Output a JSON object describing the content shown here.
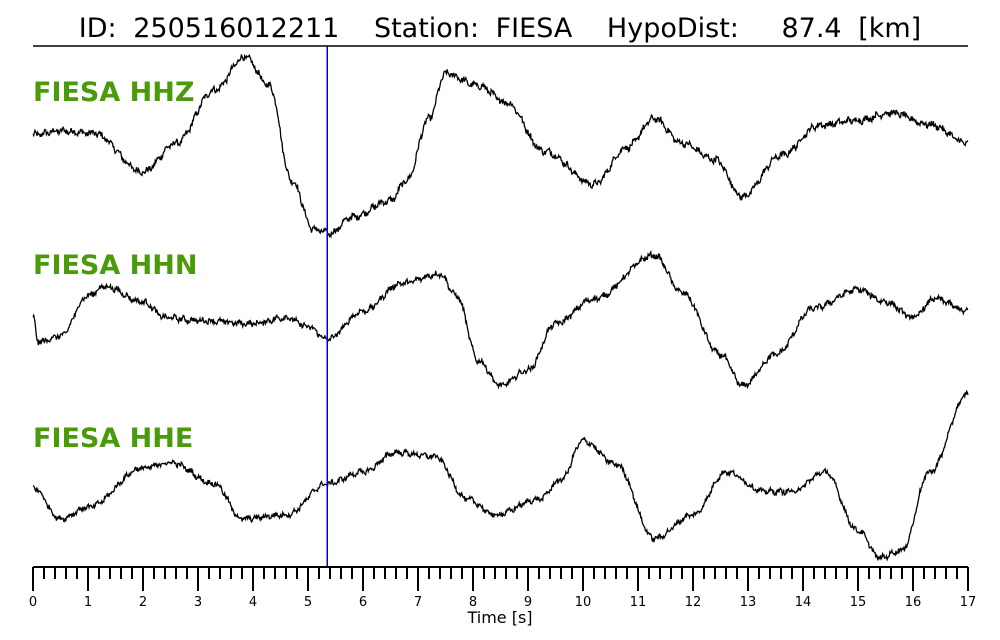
{
  "title": {
    "id_label": "ID:",
    "id": "250516012211",
    "station_label": "Station:",
    "station": "FIESA",
    "dist_label": "HypoDist:",
    "dist_value": "87.4",
    "dist_unit": "[km]"
  },
  "colors": {
    "label": "#4a9a0a",
    "trace": "#000000",
    "pick": "#0000cc"
  },
  "chart_data": {
    "type": "line",
    "xlabel": "Time [s]",
    "xlim": [
      0,
      17
    ],
    "x_major_ticks": [
      0,
      1,
      2,
      3,
      4,
      5,
      6,
      7,
      8,
      9,
      10,
      11,
      12,
      13,
      14,
      15,
      16,
      17
    ],
    "x_minor_step": 0.2,
    "pick_time": 5.35,
    "series": [
      {
        "name": "FIESA HHZ",
        "noise": 0.035,
        "points": [
          [
            0,
            0
          ],
          [
            0.5,
            0.05
          ],
          [
            1.1,
            0.02
          ],
          [
            2.0,
            -0.45
          ],
          [
            2.6,
            -0.1
          ],
          [
            3.3,
            0.55
          ],
          [
            3.85,
            0.95
          ],
          [
            4.3,
            0.6
          ],
          [
            4.7,
            -0.55
          ],
          [
            5.1,
            -1.15
          ],
          [
            5.4,
            -1.2
          ],
          [
            5.8,
            -1.0
          ],
          [
            6.5,
            -0.8
          ],
          [
            6.8,
            -0.55
          ],
          [
            7.2,
            0.2
          ],
          [
            7.5,
            0.75
          ],
          [
            8.1,
            0.6
          ],
          [
            8.6,
            0.4
          ],
          [
            9.3,
            -0.2
          ],
          [
            10.2,
            -0.6
          ],
          [
            10.8,
            -0.15
          ],
          [
            11.3,
            0.2
          ],
          [
            11.8,
            -0.1
          ],
          [
            12.4,
            -0.3
          ],
          [
            12.9,
            -0.75
          ],
          [
            13.6,
            -0.25
          ],
          [
            14.3,
            0.12
          ],
          [
            15.0,
            0.18
          ],
          [
            15.6,
            0.27
          ],
          [
            16.3,
            0.13
          ],
          [
            17.0,
            -0.1
          ]
        ]
      },
      {
        "name": "FIESA HHN",
        "noise": 0.04,
        "points": [
          [
            0,
            -0.2
          ],
          [
            0.1,
            -0.6
          ],
          [
            0.5,
            -0.5
          ],
          [
            1.0,
            0.15
          ],
          [
            1.3,
            0.3
          ],
          [
            2.0,
            0.05
          ],
          [
            2.4,
            -0.2
          ],
          [
            3.0,
            -0.25
          ],
          [
            4.0,
            -0.3
          ],
          [
            4.6,
            -0.2
          ],
          [
            5.0,
            -0.35
          ],
          [
            5.35,
            -0.55
          ],
          [
            6.0,
            -0.1
          ],
          [
            6.7,
            0.35
          ],
          [
            7.4,
            0.5
          ],
          [
            7.7,
            0.15
          ],
          [
            8.1,
            -0.9
          ],
          [
            8.5,
            -1.3
          ],
          [
            9.0,
            -1.05
          ],
          [
            9.5,
            -0.3
          ],
          [
            10.2,
            0.1
          ],
          [
            11.3,
            0.8
          ],
          [
            11.8,
            0.2
          ],
          [
            12.5,
            -0.8
          ],
          [
            12.9,
            -1.3
          ],
          [
            13.5,
            -0.8
          ],
          [
            14.2,
            -0.05
          ],
          [
            15.0,
            0.25
          ],
          [
            15.5,
            0.05
          ],
          [
            16.0,
            -0.2
          ],
          [
            16.4,
            0.1
          ],
          [
            17.0,
            -0.1
          ]
        ]
      },
      {
        "name": "FIESA HHE",
        "noise": 0.03,
        "points": [
          [
            0,
            -0.2
          ],
          [
            0.5,
            -0.6
          ],
          [
            1.0,
            -0.45
          ],
          [
            2.0,
            0.05
          ],
          [
            2.5,
            0.12
          ],
          [
            3.3,
            -0.15
          ],
          [
            3.8,
            -0.6
          ],
          [
            4.6,
            -0.55
          ],
          [
            5.35,
            -0.15
          ],
          [
            6.0,
            0.0
          ],
          [
            6.6,
            0.25
          ],
          [
            7.3,
            0.2
          ],
          [
            7.9,
            -0.35
          ],
          [
            8.4,
            -0.55
          ],
          [
            9.2,
            -0.35
          ],
          [
            9.6,
            -0.1
          ],
          [
            10.0,
            0.4
          ],
          [
            10.6,
            0.1
          ],
          [
            11.3,
            -0.85
          ],
          [
            12.0,
            -0.55
          ],
          [
            12.6,
            0.0
          ],
          [
            13.3,
            -0.25
          ],
          [
            13.8,
            -0.25
          ],
          [
            14.4,
            0.0
          ],
          [
            15.0,
            -0.75
          ],
          [
            15.4,
            -1.1
          ],
          [
            15.8,
            -1.0
          ],
          [
            16.3,
            0.0
          ],
          [
            17.0,
            1.0
          ]
        ]
      }
    ]
  }
}
